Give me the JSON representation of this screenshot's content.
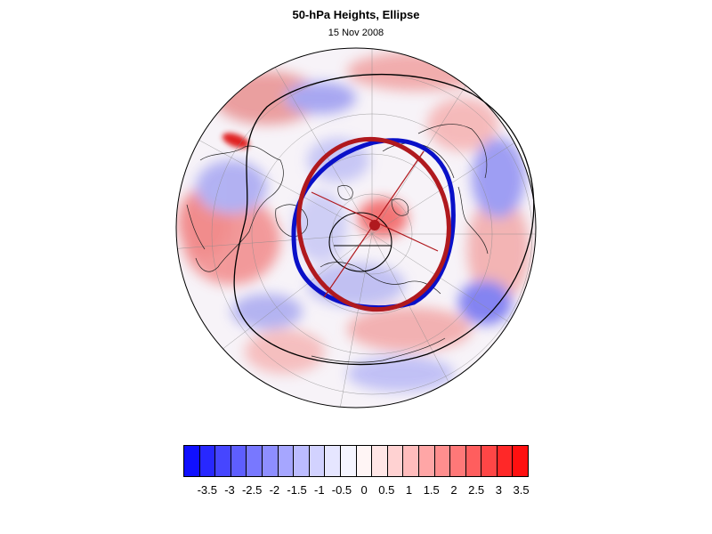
{
  "header": {
    "title": "50-hPa Heights, Ellipse",
    "date": "15 Nov 2008"
  },
  "map": {
    "projection": "north-polar-stereographic",
    "field": "50-hPa geopotential height anomaly",
    "overlay": {
      "blue_contour_color": "#0a10c8",
      "fitted_ellipse_color": "#b0191e",
      "centroid_marker_color": "#b0191e",
      "black_contour_color": "#000000"
    }
  },
  "colorbar": {
    "colors": [
      "#1010ff",
      "#2828ff",
      "#4646ff",
      "#5e5eff",
      "#7878ff",
      "#8e8eff",
      "#a6a6ff",
      "#bcbcff",
      "#d2d2ff",
      "#e6e6ff",
      "#f5f5ff",
      "#fff5f5",
      "#ffe6e6",
      "#ffd2d2",
      "#ffbcbc",
      "#ffa6a6",
      "#ff8e8e",
      "#ff7878",
      "#ff5e5e",
      "#ff4646",
      "#ff2828",
      "#ff1010"
    ],
    "tick_labels": [
      "-3.5",
      "-3",
      "-2.5",
      "-2",
      "-1.5",
      "-1",
      "-0.5",
      "0",
      "0.5",
      "1",
      "1.5",
      "2",
      "2.5",
      "3",
      "3.5"
    ]
  }
}
